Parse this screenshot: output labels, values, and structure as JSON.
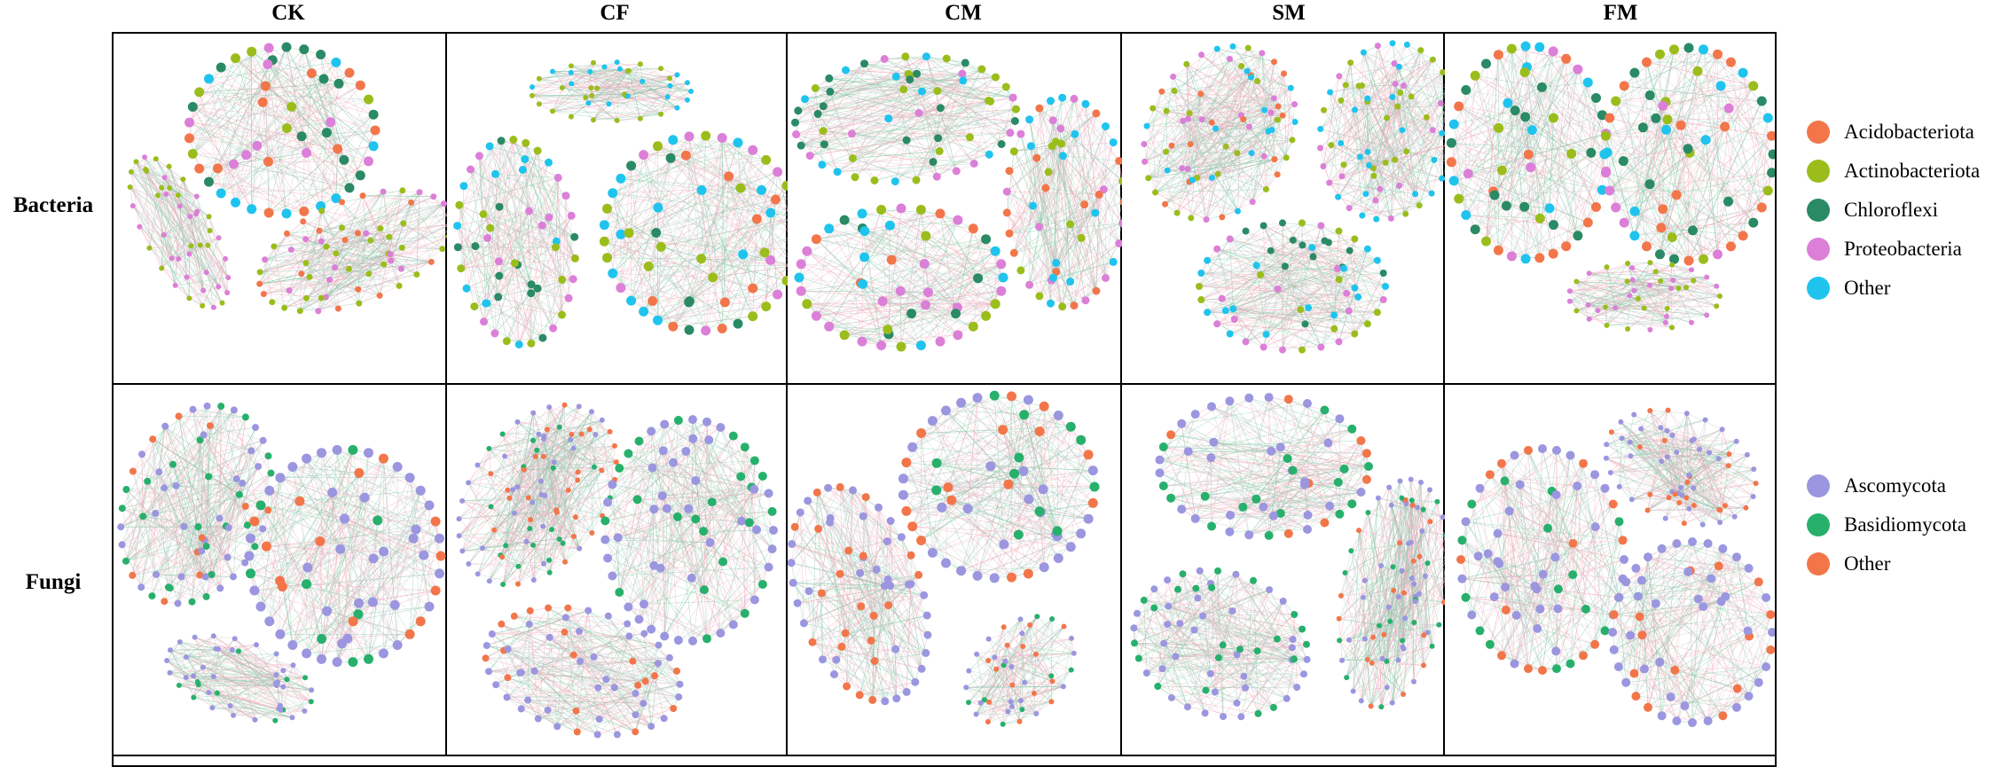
{
  "columns": [
    "CK",
    "CF",
    "CM",
    "SM",
    "FM"
  ],
  "rows": [
    "Bacteria",
    "Fungi"
  ],
  "legends": {
    "bacteria": [
      {
        "label": "Acidobacteriota",
        "color": "#f2764a"
      },
      {
        "label": "Actinobacteriota",
        "color": "#9bbd1c"
      },
      {
        "label": "Chloroflexi",
        "color": "#2a8a66"
      },
      {
        "label": "Proteobacteria",
        "color": "#dc7fd8"
      },
      {
        "label": "Other",
        "color": "#1fc4ee"
      }
    ],
    "fungi": [
      {
        "label": "Ascomycota",
        "color": "#9b96df"
      },
      {
        "label": "Basidiomycota",
        "color": "#27b06c"
      },
      {
        "label": "Other",
        "color": "#f2764a"
      }
    ]
  },
  "panels": {
    "bacteria": {
      "CK": [
        {
          "mix": [
            "Acidobacteriota",
            "Actinobacteriota",
            "Proteobacteria",
            "Chloroflexi",
            "Other"
          ]
        },
        {
          "mix": [
            "Actinobacteriota",
            "Proteobacteria"
          ]
        },
        {
          "mix": [
            "Acidobacteriota",
            "Proteobacteria",
            "Actinobacteriota"
          ]
        }
      ],
      "CF": [
        {
          "mix": [
            "Other",
            "Actinobacteriota"
          ]
        },
        {
          "mix": [
            "Actinobacteriota",
            "Proteobacteria",
            "Other",
            "Chloroflexi"
          ]
        },
        {
          "mix": [
            "Actinobacteriota",
            "Proteobacteria",
            "Acidobacteriota",
            "Other",
            "Chloroflexi"
          ]
        }
      ],
      "CM": [
        {
          "mix": [
            "Proteobacteria",
            "Other",
            "Actinobacteriota",
            "Chloroflexi"
          ]
        },
        {
          "mix": [
            "Proteobacteria",
            "Other",
            "Actinobacteriota",
            "Acidobacteriota"
          ]
        },
        {
          "mix": [
            "Actinobacteriota",
            "Proteobacteria",
            "Chloroflexi",
            "Other",
            "Acidobacteriota"
          ]
        }
      ],
      "SM": [
        {
          "mix": [
            "Actinobacteriota",
            "Proteobacteria",
            "Other",
            "Acidobacteriota"
          ]
        },
        {
          "mix": [
            "Proteobacteria",
            "Other",
            "Actinobacteriota"
          ]
        },
        {
          "mix": [
            "Other",
            "Actinobacteriota",
            "Chloroflexi",
            "Proteobacteria"
          ]
        }
      ],
      "FM": [
        {
          "mix": [
            "Proteobacteria",
            "Actinobacteriota",
            "Other",
            "Chloroflexi",
            "Acidobacteriota"
          ]
        },
        {
          "mix": [
            "Actinobacteriota",
            "Proteobacteria",
            "Other",
            "Chloroflexi",
            "Acidobacteriota"
          ]
        },
        {
          "mix": [
            "Proteobacteria",
            "Actinobacteriota"
          ]
        }
      ]
    },
    "fungi": {
      "CK": [
        {
          "mix": [
            "Ascomycota",
            "Ascomycota",
            "Other",
            "Basidiomycota"
          ]
        },
        {
          "mix": [
            "Ascomycota",
            "Ascomycota",
            "Ascomycota",
            "Other",
            "Basidiomycota"
          ]
        },
        {
          "mix": [
            "Ascomycota",
            "Ascomycota",
            "Basidiomycota"
          ]
        }
      ],
      "CF": [
        {
          "mix": [
            "Ascomycota",
            "Ascomycota",
            "Basidiomycota",
            "Other"
          ]
        },
        {
          "mix": [
            "Ascomycota",
            "Ascomycota",
            "Ascomycota",
            "Basidiomycota"
          ]
        },
        {
          "mix": [
            "Ascomycota",
            "Ascomycota",
            "Other"
          ]
        }
      ],
      "CM": [
        {
          "mix": [
            "Ascomycota",
            "Ascomycota",
            "Ascomycota",
            "Other",
            "Basidiomycota"
          ]
        },
        {
          "mix": [
            "Ascomycota",
            "Ascomycota",
            "Other"
          ]
        },
        {
          "mix": [
            "Ascomycota",
            "Basidiomycota",
            "Other"
          ]
        }
      ],
      "SM": [
        {
          "mix": [
            "Ascomycota",
            "Ascomycota",
            "Ascomycota",
            "Other",
            "Basidiomycota"
          ]
        },
        {
          "mix": [
            "Ascomycota",
            "Ascomycota",
            "Basidiomycota",
            "Other"
          ]
        },
        {
          "mix": [
            "Ascomycota",
            "Ascomycota",
            "Basidiomycota"
          ]
        }
      ],
      "FM": [
        {
          "mix": [
            "Ascomycota",
            "Ascomycota",
            "Basidiomycota",
            "Other"
          ]
        },
        {
          "mix": [
            "Ascomycota",
            "Ascomycota",
            "Other"
          ]
        },
        {
          "mix": [
            "Ascomycota",
            "Ascomycota",
            "Other"
          ]
        }
      ]
    }
  }
}
